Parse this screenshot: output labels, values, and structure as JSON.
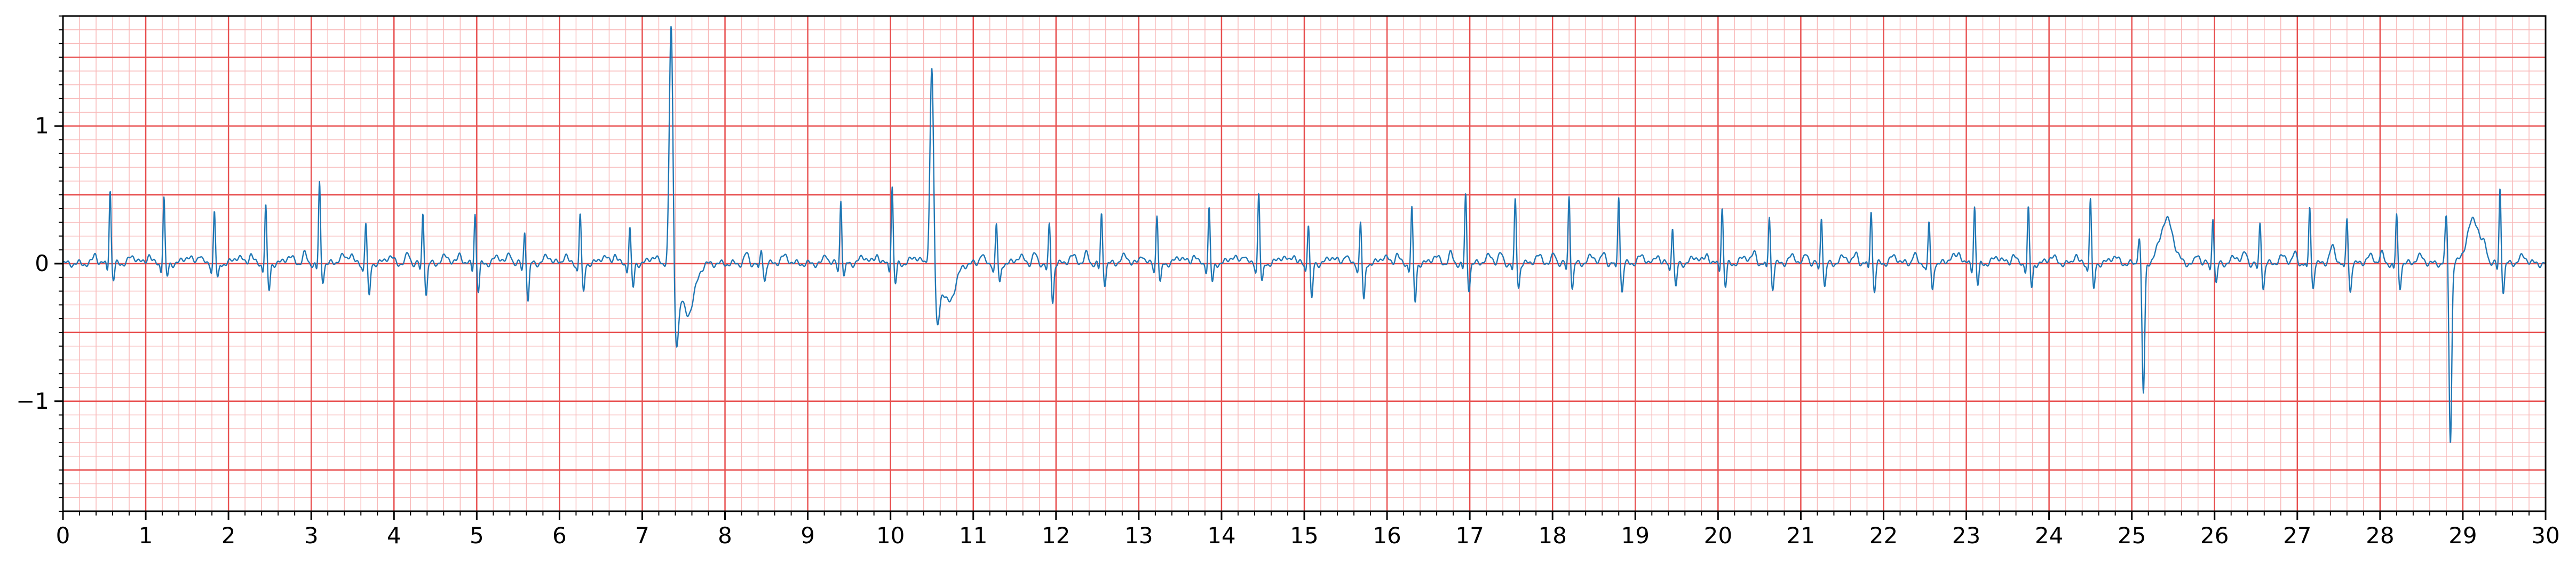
{
  "chart_data": {
    "type": "line",
    "title": "",
    "xlabel": "",
    "ylabel": "",
    "xlim": [
      0,
      30
    ],
    "ylim": [
      -1.8,
      1.8
    ],
    "x_ticks": [
      "0",
      "1",
      "2",
      "3",
      "4",
      "5",
      "6",
      "7",
      "8",
      "9",
      "10",
      "11",
      "12",
      "13",
      "14",
      "15",
      "16",
      "17",
      "18",
      "19",
      "20",
      "21",
      "22",
      "23",
      "24",
      "25",
      "26",
      "27",
      "28",
      "29",
      "30"
    ],
    "y_ticks": [
      "−1",
      "0",
      "1"
    ],
    "y_tick_values": [
      -1,
      0,
      1
    ],
    "grid": {
      "major_x": 1,
      "minor_x": 0.2,
      "major_y": 0.5,
      "minor_y": 0.1
    },
    "colors": {
      "major_grid": "#e85050",
      "minor_grid": "#f8b9b9",
      "trace": "#1f77b4"
    },
    "series": [
      {
        "beats": [
          {
            "t": 0.57,
            "r": 0.55,
            "s": -0.12
          },
          {
            "t": 1.22,
            "r": 0.48,
            "s": -0.1
          },
          {
            "t": 1.83,
            "r": 0.38,
            "s": -0.12
          },
          {
            "t": 2.45,
            "r": 0.42,
            "s": -0.2
          },
          {
            "t": 3.1,
            "r": 0.58,
            "s": -0.12
          },
          {
            "t": 3.66,
            "r": 0.3,
            "s": -0.25
          },
          {
            "t": 4.35,
            "r": 0.37,
            "s": -0.22
          },
          {
            "t": 4.98,
            "r": 0.37,
            "s": -0.2
          },
          {
            "t": 5.58,
            "r": 0.24,
            "s": -0.27
          },
          {
            "t": 6.25,
            "r": 0.37,
            "s": -0.22
          },
          {
            "t": 6.85,
            "r": 0.26,
            "s": -0.18
          },
          {
            "t": 7.35,
            "r": 1.8,
            "s": -0.52,
            "pvc": true
          },
          {
            "t": 8.44,
            "r": 0.1,
            "s": -0.12
          },
          {
            "t": 9.4,
            "r": 0.47,
            "s": -0.1
          },
          {
            "t": 10.02,
            "r": 0.57,
            "s": -0.15
          },
          {
            "t": 10.5,
            "r": 1.48,
            "s": -0.4,
            "pvc": true
          },
          {
            "t": 11.28,
            "r": 0.28,
            "s": -0.15
          },
          {
            "t": 11.92,
            "r": 0.28,
            "s": -0.28
          },
          {
            "t": 12.55,
            "r": 0.36,
            "s": -0.14
          },
          {
            "t": 13.22,
            "r": 0.36,
            "s": -0.15
          },
          {
            "t": 13.85,
            "r": 0.4,
            "s": -0.14
          },
          {
            "t": 14.45,
            "r": 0.52,
            "s": -0.15
          },
          {
            "t": 15.05,
            "r": 0.3,
            "s": -0.27
          },
          {
            "t": 15.68,
            "r": 0.3,
            "s": -0.28
          },
          {
            "t": 16.3,
            "r": 0.4,
            "s": -0.28
          },
          {
            "t": 16.95,
            "r": 0.5,
            "s": -0.18
          },
          {
            "t": 17.55,
            "r": 0.46,
            "s": -0.17
          },
          {
            "t": 18.2,
            "r": 0.5,
            "s": -0.18
          },
          {
            "t": 18.8,
            "r": 0.5,
            "s": -0.2
          },
          {
            "t": 19.45,
            "r": 0.28,
            "s": -0.18
          },
          {
            "t": 20.05,
            "r": 0.42,
            "s": -0.17
          },
          {
            "t": 20.62,
            "r": 0.35,
            "s": -0.18
          },
          {
            "t": 21.25,
            "r": 0.35,
            "s": -0.17
          },
          {
            "t": 21.85,
            "r": 0.4,
            "s": -0.2
          },
          {
            "t": 22.55,
            "r": 0.3,
            "s": -0.2
          },
          {
            "t": 23.1,
            "r": 0.42,
            "s": -0.16
          },
          {
            "t": 23.75,
            "r": 0.4,
            "s": -0.18
          },
          {
            "t": 24.5,
            "r": 0.48,
            "s": -0.2
          },
          {
            "t": 25.12,
            "r": 0.2,
            "s": -0.95,
            "neg": true
          },
          {
            "t": 25.98,
            "r": 0.35,
            "s": -0.15
          },
          {
            "t": 26.55,
            "r": 0.3,
            "s": -0.18
          },
          {
            "t": 27.15,
            "r": 0.42,
            "s": -0.17
          },
          {
            "t": 27.6,
            "r": 0.33,
            "s": -0.2
          },
          {
            "t": 28.2,
            "r": 0.35,
            "s": -0.17
          },
          {
            "t": 28.83,
            "r": 0.33,
            "s": -1.3,
            "neg": true
          },
          {
            "t": 29.45,
            "r": 0.55,
            "s": -0.2
          }
        ]
      }
    ]
  }
}
